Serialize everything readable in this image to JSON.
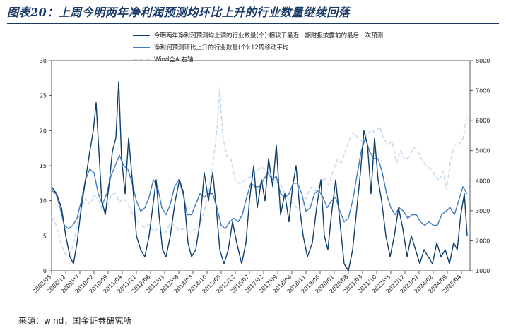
{
  "title": "图表20：上周今明两年净利润预测均环比上升的行业数量继续回落",
  "source": "来源：wind，国金证券研究所",
  "colors": {
    "title": "#1a3a66",
    "series_dark": "#0f3d6b",
    "series_mid": "#3f7cc0",
    "series_light": "#c7dcef"
  },
  "chart_data": {
    "type": "line",
    "x_tick_labels": [
      "2008/05",
      "2008/12",
      "2009/07",
      "2010/02",
      "2010/09",
      "2011/04",
      "2011/11",
      "2012/06",
      "2013/01",
      "2013/08",
      "2014/03",
      "2014/10",
      "2015/05",
      "2015/12",
      "2016/07",
      "2017/02",
      "2017/09",
      "2018/04",
      "2018/11",
      "2019/06",
      "2020/01",
      "2020/08",
      "2021/03",
      "2021/10",
      "2022/05",
      "2022/12",
      "2023/07",
      "2024/02",
      "2024/09",
      "2025/04"
    ],
    "y_left": {
      "min": 0,
      "max": 30,
      "ticks": [
        0,
        5,
        10,
        15,
        20,
        25,
        30
      ]
    },
    "y_right": {
      "min": 1000,
      "max": 8000,
      "ticks": [
        1000,
        2000,
        3000,
        4000,
        5000,
        6000,
        7000,
        8000
      ]
    },
    "legend": [
      "今明两年净利润预测均上调的行业数量(个):相较于最近一期财报披露前的最后一次预测",
      "净利润预测环比上升的行业数量(个):12周移动平均",
      "Wind全A:右轴"
    ],
    "series": [
      {
        "name": "今明两年净利润预测均上调的行业数量(个):相较于最近一期财报披露前的最后一次预测",
        "axis": "left",
        "style": "solid-dark",
        "points": [
          [
            0.0,
            12
          ],
          [
            0.35,
            11
          ],
          [
            0.7,
            9
          ],
          [
            1.0,
            5
          ],
          [
            1.3,
            2
          ],
          [
            1.55,
            1
          ],
          [
            1.8,
            4
          ],
          [
            2.1,
            9
          ],
          [
            2.4,
            13
          ],
          [
            2.7,
            17
          ],
          [
            2.95,
            20
          ],
          [
            3.15,
            24
          ],
          [
            3.35,
            17
          ],
          [
            3.55,
            10
          ],
          [
            3.8,
            8
          ],
          [
            4.05,
            12
          ],
          [
            4.3,
            17
          ],
          [
            4.55,
            19
          ],
          [
            4.75,
            27
          ],
          [
            4.95,
            16
          ],
          [
            5.2,
            11
          ],
          [
            5.45,
            19
          ],
          [
            5.75,
            12
          ],
          [
            6.0,
            5
          ],
          [
            6.3,
            3
          ],
          [
            6.6,
            2
          ],
          [
            6.9,
            5
          ],
          [
            7.15,
            9
          ],
          [
            7.4,
            13
          ],
          [
            7.6,
            8
          ],
          [
            7.85,
            3
          ],
          [
            8.1,
            2
          ],
          [
            8.4,
            5
          ],
          [
            8.75,
            10
          ],
          [
            9.05,
            13
          ],
          [
            9.35,
            11
          ],
          [
            9.65,
            4
          ],
          [
            9.9,
            2
          ],
          [
            10.2,
            3
          ],
          [
            10.5,
            7
          ],
          [
            10.8,
            14
          ],
          [
            11.1,
            10
          ],
          [
            11.4,
            14
          ],
          [
            11.65,
            9
          ],
          [
            11.9,
            3
          ],
          [
            12.2,
            1
          ],
          [
            12.5,
            3
          ],
          [
            12.8,
            7
          ],
          [
            13.1,
            4
          ],
          [
            13.45,
            1
          ],
          [
            13.75,
            4
          ],
          [
            14.0,
            10
          ],
          [
            14.3,
            15
          ],
          [
            14.55,
            9
          ],
          [
            14.85,
            13
          ],
          [
            15.1,
            10
          ],
          [
            15.35,
            16
          ],
          [
            15.65,
            12
          ],
          [
            15.9,
            18
          ],
          [
            16.2,
            8
          ],
          [
            16.5,
            11
          ],
          [
            16.8,
            7
          ],
          [
            17.05,
            12
          ],
          [
            17.3,
            15
          ],
          [
            17.55,
            9
          ],
          [
            17.8,
            5
          ],
          [
            18.1,
            2
          ],
          [
            18.45,
            4
          ],
          [
            18.75,
            9
          ],
          [
            19.05,
            13
          ],
          [
            19.3,
            5
          ],
          [
            19.55,
            3
          ],
          [
            19.8,
            8
          ],
          [
            20.1,
            13
          ],
          [
            20.4,
            7
          ],
          [
            20.7,
            1
          ],
          [
            21.0,
            0
          ],
          [
            21.3,
            3
          ],
          [
            21.6,
            9
          ],
          [
            21.85,
            14
          ],
          [
            22.1,
            20
          ],
          [
            22.35,
            18
          ],
          [
            22.6,
            11
          ],
          [
            22.85,
            19
          ],
          [
            23.1,
            13
          ],
          [
            23.35,
            10
          ],
          [
            23.65,
            5
          ],
          [
            23.95,
            2
          ],
          [
            24.25,
            5
          ],
          [
            24.55,
            9
          ],
          [
            24.85,
            6
          ],
          [
            25.15,
            2
          ],
          [
            25.45,
            5
          ],
          [
            25.75,
            3
          ],
          [
            26.05,
            1
          ],
          [
            26.35,
            3
          ],
          [
            26.65,
            2
          ],
          [
            26.95,
            1
          ],
          [
            27.25,
            4
          ],
          [
            27.55,
            2
          ],
          [
            27.85,
            3
          ],
          [
            28.15,
            1
          ],
          [
            28.45,
            4
          ],
          [
            28.7,
            3
          ],
          [
            28.95,
            8
          ],
          [
            29.2,
            11
          ],
          [
            29.4,
            5
          ]
        ]
      },
      {
        "name": "净利润预测环比上升的行业数量(个):12周移动平均",
        "axis": "left",
        "style": "solid-mid",
        "points": [
          [
            0.0,
            11.5
          ],
          [
            0.3,
            11
          ],
          [
            0.6,
            9
          ],
          [
            0.9,
            6.5
          ],
          [
            1.2,
            6
          ],
          [
            1.5,
            6.5
          ],
          [
            1.8,
            7.5
          ],
          [
            2.1,
            10
          ],
          [
            2.4,
            13
          ],
          [
            2.7,
            14.5
          ],
          [
            3.0,
            14
          ],
          [
            3.3,
            11
          ],
          [
            3.6,
            9.5
          ],
          [
            3.9,
            11
          ],
          [
            4.2,
            13.5
          ],
          [
            4.5,
            15
          ],
          [
            4.8,
            16.5
          ],
          [
            5.1,
            15
          ],
          [
            5.4,
            14.5
          ],
          [
            5.7,
            12.5
          ],
          [
            6.0,
            10
          ],
          [
            6.3,
            8.5
          ],
          [
            6.6,
            9
          ],
          [
            6.9,
            10.5
          ],
          [
            7.2,
            13
          ],
          [
            7.5,
            12
          ],
          [
            7.8,
            9
          ],
          [
            8.1,
            8
          ],
          [
            8.4,
            9.5
          ],
          [
            8.7,
            12
          ],
          [
            9.0,
            13
          ],
          [
            9.3,
            11
          ],
          [
            9.6,
            8
          ],
          [
            9.9,
            8
          ],
          [
            10.2,
            9.5
          ],
          [
            10.5,
            11
          ],
          [
            10.8,
            10.5
          ],
          [
            11.1,
            11
          ],
          [
            11.4,
            11
          ],
          [
            11.7,
            9
          ],
          [
            12.0,
            6.5
          ],
          [
            12.3,
            6
          ],
          [
            12.6,
            7
          ],
          [
            12.9,
            7.5
          ],
          [
            13.2,
            7
          ],
          [
            13.5,
            8
          ],
          [
            13.8,
            10.5
          ],
          [
            14.1,
            12.5
          ],
          [
            14.4,
            12
          ],
          [
            14.7,
            12
          ],
          [
            15.0,
            13
          ],
          [
            15.3,
            14
          ],
          [
            15.6,
            13
          ],
          [
            15.9,
            13.5
          ],
          [
            16.2,
            11
          ],
          [
            16.5,
            10.5
          ],
          [
            16.8,
            11
          ],
          [
            17.1,
            12.5
          ],
          [
            17.4,
            12.5
          ],
          [
            17.7,
            11
          ],
          [
            18.0,
            8.5
          ],
          [
            18.3,
            9
          ],
          [
            18.6,
            11
          ],
          [
            18.9,
            11.5
          ],
          [
            19.2,
            10.5
          ],
          [
            19.5,
            9
          ],
          [
            19.8,
            10
          ],
          [
            20.1,
            10.5
          ],
          [
            20.4,
            8.5
          ],
          [
            20.7,
            7
          ],
          [
            21.0,
            7.5
          ],
          [
            21.3,
            10
          ],
          [
            21.6,
            13.5
          ],
          [
            21.9,
            17
          ],
          [
            22.2,
            19
          ],
          [
            22.5,
            17
          ],
          [
            22.8,
            16
          ],
          [
            23.1,
            16
          ],
          [
            23.4,
            14
          ],
          [
            23.7,
            11
          ],
          [
            24.0,
            9
          ],
          [
            24.3,
            8
          ],
          [
            24.6,
            9
          ],
          [
            24.9,
            8.5
          ],
          [
            25.2,
            7.5
          ],
          [
            25.5,
            8
          ],
          [
            25.8,
            8
          ],
          [
            26.1,
            7
          ],
          [
            26.4,
            6.5
          ],
          [
            26.7,
            7
          ],
          [
            27.0,
            6.5
          ],
          [
            27.3,
            6.5
          ],
          [
            27.6,
            8
          ],
          [
            27.9,
            8.5
          ],
          [
            28.2,
            9
          ],
          [
            28.5,
            8
          ],
          [
            28.8,
            10
          ],
          [
            29.1,
            12
          ],
          [
            29.4,
            11
          ]
        ]
      },
      {
        "name": "Wind全A:右轴",
        "axis": "right",
        "style": "dashed-light",
        "points": [
          [
            0.0,
            2800
          ],
          [
            0.3,
            2550
          ],
          [
            0.6,
            2000
          ],
          [
            0.9,
            1600
          ],
          [
            1.2,
            1500
          ],
          [
            1.5,
            1800
          ],
          [
            1.8,
            2500
          ],
          [
            2.1,
            3100
          ],
          [
            2.4,
            3400
          ],
          [
            2.7,
            3200
          ],
          [
            3.0,
            3500
          ],
          [
            3.3,
            3400
          ],
          [
            3.6,
            3000
          ],
          [
            3.9,
            3100
          ],
          [
            4.2,
            3500
          ],
          [
            4.5,
            3600
          ],
          [
            4.8,
            3300
          ],
          [
            5.1,
            3400
          ],
          [
            5.4,
            3250
          ],
          [
            5.7,
            2900
          ],
          [
            6.0,
            2700
          ],
          [
            6.3,
            2500
          ],
          [
            6.6,
            2450
          ],
          [
            6.9,
            2550
          ],
          [
            7.2,
            2300
          ],
          [
            7.5,
            2400
          ],
          [
            7.8,
            2250
          ],
          [
            8.1,
            2300
          ],
          [
            8.4,
            2600
          ],
          [
            8.7,
            2500
          ],
          [
            9.0,
            2350
          ],
          [
            9.3,
            2400
          ],
          [
            9.6,
            2350
          ],
          [
            9.9,
            2300
          ],
          [
            10.2,
            2400
          ],
          [
            10.5,
            2500
          ],
          [
            10.8,
            3000
          ],
          [
            11.1,
            3600
          ],
          [
            11.4,
            4500
          ],
          [
            11.7,
            5700
          ],
          [
            11.9,
            7100
          ],
          [
            12.1,
            5500
          ],
          [
            12.4,
            4800
          ],
          [
            12.7,
            4700
          ],
          [
            13.0,
            4000
          ],
          [
            13.3,
            3900
          ],
          [
            13.6,
            4000
          ],
          [
            13.9,
            4100
          ],
          [
            14.2,
            4150
          ],
          [
            14.5,
            4300
          ],
          [
            14.8,
            4450
          ],
          [
            15.1,
            4400
          ],
          [
            15.4,
            4300
          ],
          [
            15.7,
            4050
          ],
          [
            16.0,
            3900
          ],
          [
            16.3,
            3800
          ],
          [
            16.6,
            3500
          ],
          [
            16.9,
            3300
          ],
          [
            17.2,
            3200
          ],
          [
            17.5,
            3000
          ],
          [
            17.8,
            3200
          ],
          [
            18.1,
            3550
          ],
          [
            18.4,
            3800
          ],
          [
            18.7,
            3650
          ],
          [
            19.0,
            3900
          ],
          [
            19.3,
            4100
          ],
          [
            19.6,
            3850
          ],
          [
            19.9,
            4300
          ],
          [
            20.2,
            4700
          ],
          [
            20.5,
            4600
          ],
          [
            20.8,
            5000
          ],
          [
            21.1,
            5400
          ],
          [
            21.4,
            5600
          ],
          [
            21.7,
            5400
          ],
          [
            22.0,
            5300
          ],
          [
            22.3,
            5500
          ],
          [
            22.6,
            5700
          ],
          [
            22.9,
            5600
          ],
          [
            23.2,
            5800
          ],
          [
            23.5,
            5400
          ],
          [
            23.8,
            5200
          ],
          [
            24.1,
            5300
          ],
          [
            24.4,
            4600
          ],
          [
            24.7,
            5000
          ],
          [
            25.0,
            4700
          ],
          [
            25.3,
            4800
          ],
          [
            25.6,
            5100
          ],
          [
            25.9,
            5000
          ],
          [
            26.2,
            4700
          ],
          [
            26.5,
            4500
          ],
          [
            26.8,
            4400
          ],
          [
            27.1,
            4200
          ],
          [
            27.4,
            4000
          ],
          [
            27.7,
            4300
          ],
          [
            27.95,
            3700
          ],
          [
            28.2,
            4600
          ],
          [
            28.5,
            5200
          ],
          [
            28.8,
            5200
          ],
          [
            29.1,
            5400
          ],
          [
            29.4,
            6200
          ]
        ]
      }
    ]
  }
}
